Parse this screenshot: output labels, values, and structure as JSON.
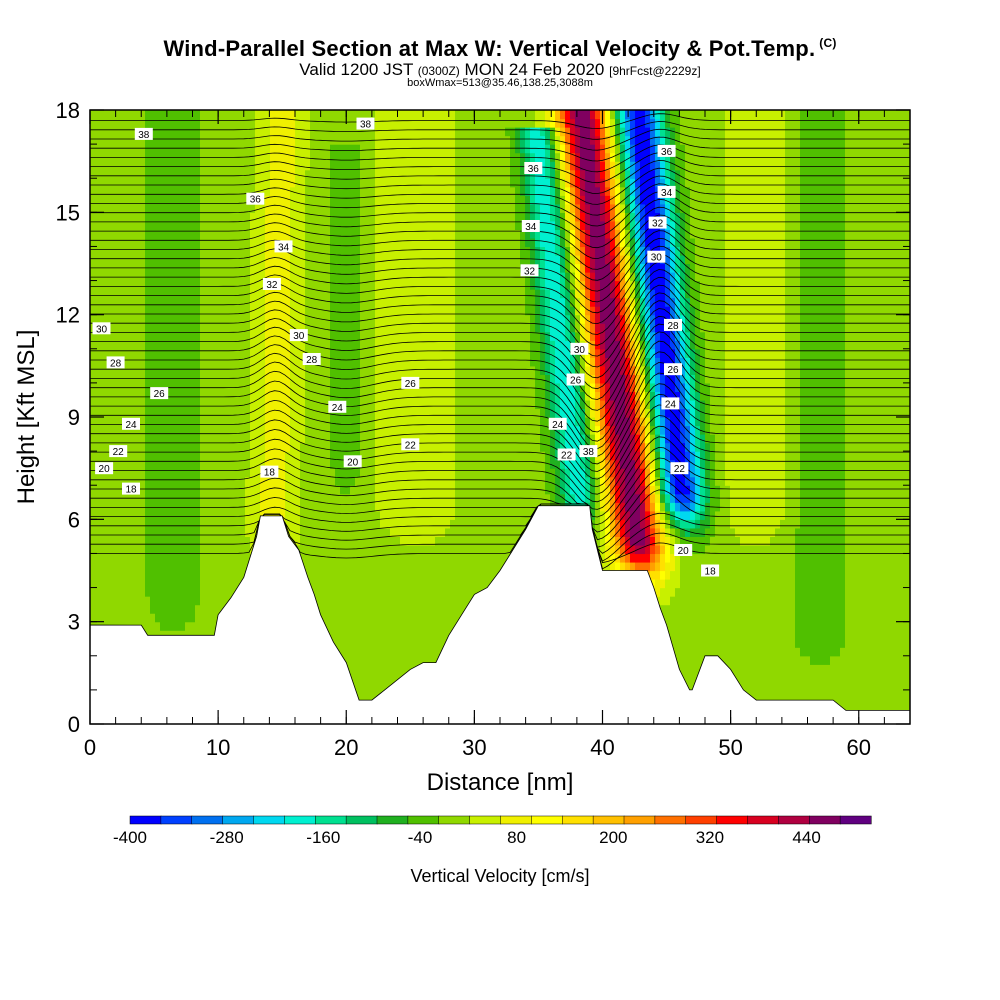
{
  "header": {
    "title": "Wind-Parallel Section at Max W: Vertical Velocity & Pot.Temp.",
    "copyright": "(C)",
    "valid_prefix": "Valid 1200 JST",
    "valid_utc": "(0300Z)",
    "valid_date": "MON 24 Feb 2020",
    "forecast_tag": "[9hrFcst@2229z]",
    "boxwmax": "boxWmax=513@35.46,138.25,3088m"
  },
  "chart_data": {
    "type": "heatmap",
    "xlabel": "Distance [nm]",
    "ylabel": "Height [Kft MSL]",
    "xlim": [
      0,
      64
    ],
    "ylim": [
      0,
      18
    ],
    "x_ticks": [
      "0",
      "10",
      "20",
      "30",
      "40",
      "50",
      "60"
    ],
    "y_ticks": [
      "0",
      "3",
      "6",
      "9",
      "12",
      "15",
      "18"
    ],
    "colorbar": {
      "label": "Vertical Velocity [cm/s]",
      "min": -400,
      "max": 520,
      "step": 40,
      "tick_labels": [
        "-400",
        "-280",
        "-160",
        "-40",
        "80",
        "200",
        "320",
        "440"
      ],
      "colors": [
        "#0000ff",
        "#0040ff",
        "#0070f0",
        "#00a8f0",
        "#00d8f0",
        "#00f0d0",
        "#00e090",
        "#00c060",
        "#20b020",
        "#50c000",
        "#90d800",
        "#c8f000",
        "#f0f000",
        "#ffff00",
        "#ffe000",
        "#ffc000",
        "#ffa000",
        "#ff7000",
        "#ff4000",
        "#ff0000",
        "#d80020",
        "#b00040",
        "#800060",
        "#600080"
      ]
    },
    "terrain_profile": {
      "x": [
        0,
        4,
        4.5,
        9.7,
        10,
        11,
        12,
        13,
        13.3,
        15,
        15.5,
        16.3,
        17,
        17.5,
        18,
        19,
        20,
        21,
        22,
        23,
        24,
        25,
        26,
        27,
        28,
        29,
        30,
        31,
        32,
        33,
        34,
        35,
        36,
        37,
        38,
        39,
        39.2,
        40,
        43.5,
        44,
        44.5,
        45,
        46,
        46.8,
        47,
        48,
        49,
        50,
        51,
        52,
        53,
        55,
        58,
        59,
        60,
        64
      ],
      "height": [
        2.9,
        2.9,
        2.6,
        2.6,
        3.2,
        3.7,
        4.3,
        5.5,
        6.1,
        6.1,
        5.5,
        5.1,
        4.3,
        3.8,
        3.2,
        2.4,
        1.8,
        0.7,
        0.7,
        1.0,
        1.3,
        1.6,
        1.8,
        1.8,
        2.6,
        3.2,
        3.8,
        4.0,
        4.5,
        5.1,
        5.7,
        6.4,
        6.4,
        6.4,
        6.4,
        6.4,
        5.7,
        4.5,
        4.5,
        4.0,
        3.4,
        2.9,
        1.6,
        1.0,
        1.0,
        2.0,
        2.0,
        1.6,
        1.0,
        0.7,
        0.7,
        0.7,
        0.7,
        0.4,
        0.4,
        0.4
      ]
    },
    "vertical_velocity_features": [
      {
        "x_center": 41.5,
        "x_width": 2.0,
        "y_bottom": 5.5,
        "y_top": 18.0,
        "tilt": -0.35,
        "value": 513
      },
      {
        "x_center": 45.5,
        "x_width": 1.8,
        "y_bottom": 7.0,
        "y_top": 18.0,
        "tilt": -0.3,
        "value": -400
      },
      {
        "x_center": 37.5,
        "x_width": 1.6,
        "y_bottom": 7.0,
        "y_top": 17.5,
        "tilt": -0.3,
        "value": -200
      },
      {
        "x_center": 14.5,
        "x_width": 1.8,
        "y_bottom": 6.0,
        "y_top": 18.0,
        "tilt": 0.05,
        "value": 100
      },
      {
        "x_center": 25.5,
        "x_width": 3.0,
        "y_bottom": 6.5,
        "y_top": 18.0,
        "tilt": 0.0,
        "value": 80
      },
      {
        "x_center": 52.0,
        "x_width": 2.5,
        "y_bottom": 6.5,
        "y_top": 18.0,
        "tilt": 0.0,
        "value": 80
      },
      {
        "x_center": 6.5,
        "x_width": 2.0,
        "y_bottom": 4.0,
        "y_top": 18.0,
        "tilt": 0.0,
        "value": -40
      },
      {
        "x_center": 20.0,
        "x_width": 1.2,
        "y_bottom": 8.0,
        "y_top": 17.0,
        "tilt": 0.0,
        "value": -40
      },
      {
        "x_center": 57.0,
        "x_width": 2.0,
        "y_bottom": 3.0,
        "y_top": 18.0,
        "tilt": 0.0,
        "value": -40
      }
    ],
    "pot_temp_labels": [
      {
        "x": 4.2,
        "y": 17.3,
        "text": "38"
      },
      {
        "x": 21.5,
        "y": 17.6,
        "text": "38"
      },
      {
        "x": 12.9,
        "y": 15.4,
        "text": "36"
      },
      {
        "x": 34.6,
        "y": 16.3,
        "text": "36"
      },
      {
        "x": 45.0,
        "y": 16.8,
        "text": "36"
      },
      {
        "x": 15.1,
        "y": 14.0,
        "text": "34"
      },
      {
        "x": 34.4,
        "y": 14.6,
        "text": "34"
      },
      {
        "x": 45.0,
        "y": 15.6,
        "text": "34"
      },
      {
        "x": 14.2,
        "y": 12.9,
        "text": "32"
      },
      {
        "x": 34.3,
        "y": 13.3,
        "text": "32"
      },
      {
        "x": 44.3,
        "y": 14.7,
        "text": "32"
      },
      {
        "x": 0.9,
        "y": 11.6,
        "text": "30"
      },
      {
        "x": 16.3,
        "y": 11.4,
        "text": "30"
      },
      {
        "x": 38.2,
        "y": 11.0,
        "text": "30"
      },
      {
        "x": 44.2,
        "y": 13.7,
        "text": "30"
      },
      {
        "x": 2.0,
        "y": 10.6,
        "text": "28"
      },
      {
        "x": 17.3,
        "y": 10.7,
        "text": "28"
      },
      {
        "x": 45.5,
        "y": 11.7,
        "text": "28"
      },
      {
        "x": 5.4,
        "y": 9.7,
        "text": "26"
      },
      {
        "x": 25.0,
        "y": 10.0,
        "text": "26"
      },
      {
        "x": 37.9,
        "y": 10.1,
        "text": "26"
      },
      {
        "x": 45.5,
        "y": 10.4,
        "text": "26"
      },
      {
        "x": 3.2,
        "y": 8.8,
        "text": "24"
      },
      {
        "x": 19.3,
        "y": 9.3,
        "text": "24"
      },
      {
        "x": 36.5,
        "y": 8.8,
        "text": "24"
      },
      {
        "x": 45.3,
        "y": 9.4,
        "text": "24"
      },
      {
        "x": 2.2,
        "y": 8.0,
        "text": "22"
      },
      {
        "x": 25.0,
        "y": 8.2,
        "text": "22"
      },
      {
        "x": 37.2,
        "y": 7.9,
        "text": "22"
      },
      {
        "x": 46.0,
        "y": 7.5,
        "text": "22"
      },
      {
        "x": 1.1,
        "y": 7.5,
        "text": "20"
      },
      {
        "x": 20.5,
        "y": 7.7,
        "text": "20"
      },
      {
        "x": 46.3,
        "y": 5.1,
        "text": "20"
      },
      {
        "x": 3.2,
        "y": 6.9,
        "text": "18"
      },
      {
        "x": 14.0,
        "y": 7.4,
        "text": "18"
      },
      {
        "x": 38.9,
        "y": 8.0,
        "text": "38"
      },
      {
        "x": 48.4,
        "y": 4.5,
        "text": "18"
      }
    ]
  }
}
